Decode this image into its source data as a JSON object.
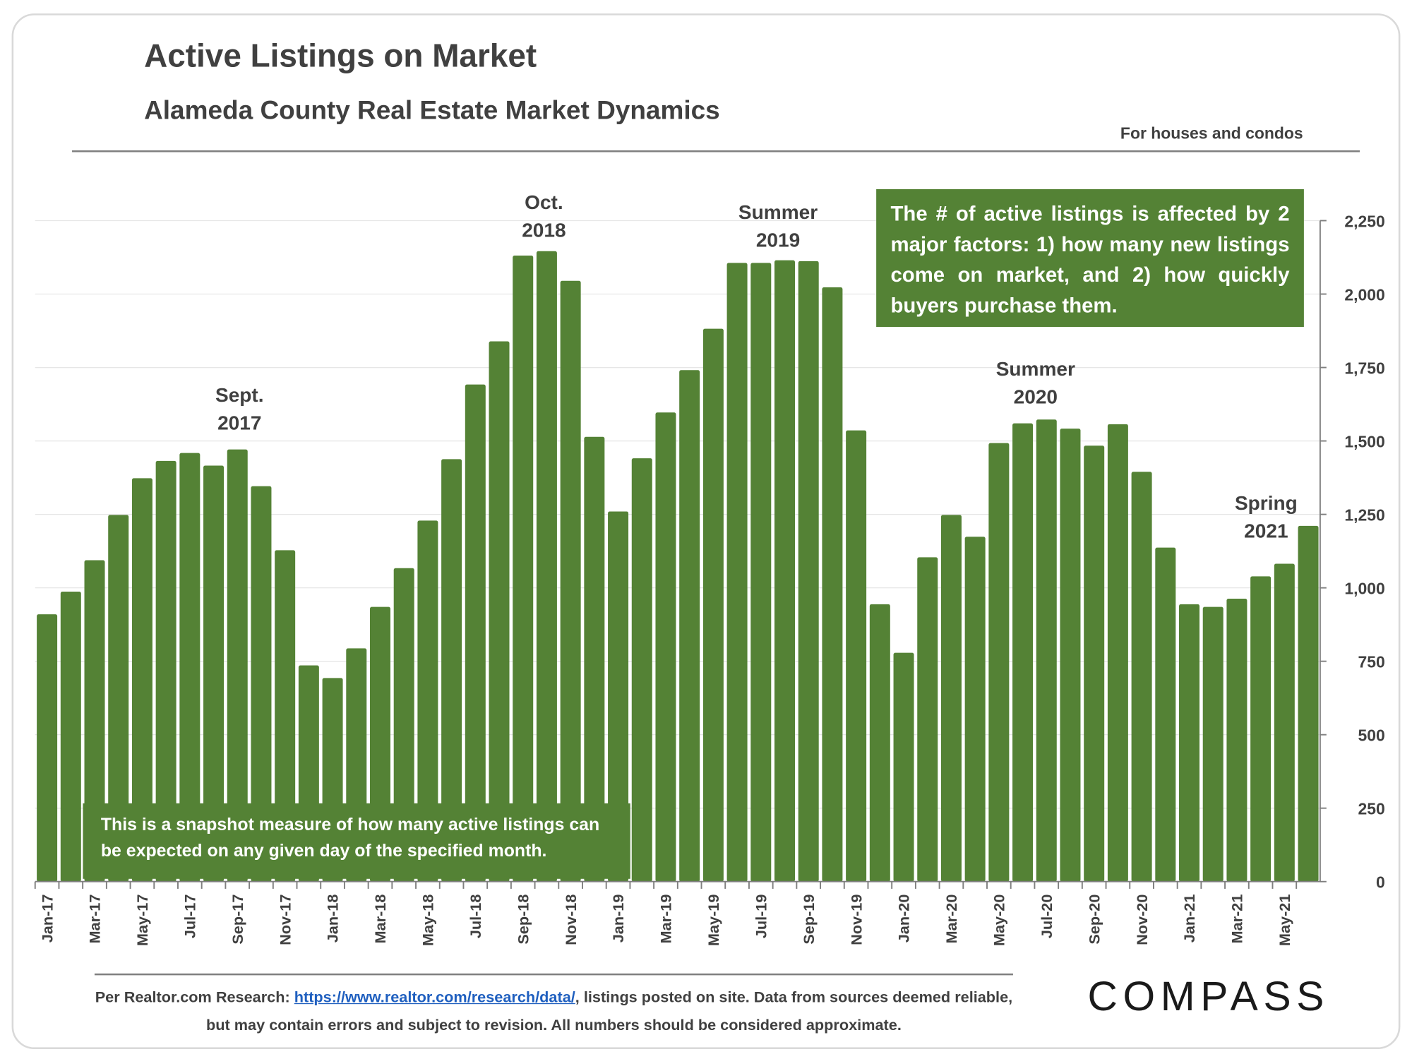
{
  "chart_data": {
    "type": "bar",
    "title": "Active Listings on Market",
    "subtitle": "Alameda County Real Estate Market Dynamics",
    "note": "For houses and condos",
    "color": "#548235",
    "categories": [
      "Jan-17",
      null,
      "Mar-17",
      null,
      "May-17",
      null,
      "Jul-17",
      null,
      "Sep-17",
      null,
      "Nov-17",
      null,
      "Jan-18",
      null,
      "Mar-18",
      null,
      "May-18",
      null,
      "Jul-18",
      null,
      "Sep-18",
      null,
      "Nov-18",
      null,
      "Jan-19",
      null,
      "Mar-19",
      null,
      "May-19",
      null,
      "Jul-19",
      null,
      "Sep-19",
      null,
      "Nov-19",
      null,
      "Jan-20",
      null,
      "Mar-20",
      null,
      "May-20",
      null,
      "Jul-20",
      null,
      "Sep-20",
      null,
      "Nov-20",
      null,
      "Jan-21",
      null,
      "Mar-21",
      null,
      "May-21",
      null
    ],
    "values": [
      910,
      987,
      1094,
      1248,
      1373,
      1432,
      1459,
      1416,
      1471,
      1346,
      1128,
      736,
      693,
      794,
      935,
      1067,
      1229,
      1438,
      1692,
      1839,
      2131,
      2146,
      2045,
      1514,
      1260,
      1441,
      1597,
      1741,
      1882,
      2106,
      2106,
      2115,
      2112,
      2023,
      1536,
      944,
      779,
      1104,
      1248,
      1174,
      1493,
      1560,
      1573,
      1542,
      1484,
      1557,
      1395,
      1137,
      944,
      935,
      963,
      1039,
      1082,
      1211
    ],
    "ylim": [
      0,
      2250
    ],
    "yticks": [
      0,
      250,
      500,
      750,
      {
        "value": 1000,
        "label": "1,000"
      },
      {
        "value": 1250,
        "label": "1,250"
      },
      {
        "value": 1500,
        "label": "1,500"
      },
      {
        "value": 1750,
        "label": "1,750"
      },
      {
        "value": 2000,
        "label": "2,000"
      },
      {
        "value": 2250,
        "label": "2,250"
      }
    ],
    "grid": true,
    "annotations": [
      {
        "lines": [
          "Sept.",
          "2017"
        ]
      },
      {
        "lines": [
          "Oct.",
          "2018"
        ]
      },
      {
        "lines": [
          "Summer",
          "2019"
        ]
      },
      {
        "lines": [
          "Summer",
          "2020"
        ]
      },
      {
        "lines": [
          "Spring",
          "2021"
        ]
      }
    ],
    "callout": "The # of active listings is affected by 2 major factors: 1) how many new listings come on market, and 2) how quickly buyers purchase them.",
    "snapshot_note": "This is a snapshot measure of how many active listings can be expected on any given day of the specified month.",
    "footer": {
      "prefix": "Per Realtor.com Research: ",
      "link": "https://www.realtor.com/research/data/",
      "suffix": ", listings posted on site. Data from sources deemed reliable, but may contain errors and subject to revision. All numbers should be considered approximate."
    },
    "logo": "COMPASS"
  }
}
